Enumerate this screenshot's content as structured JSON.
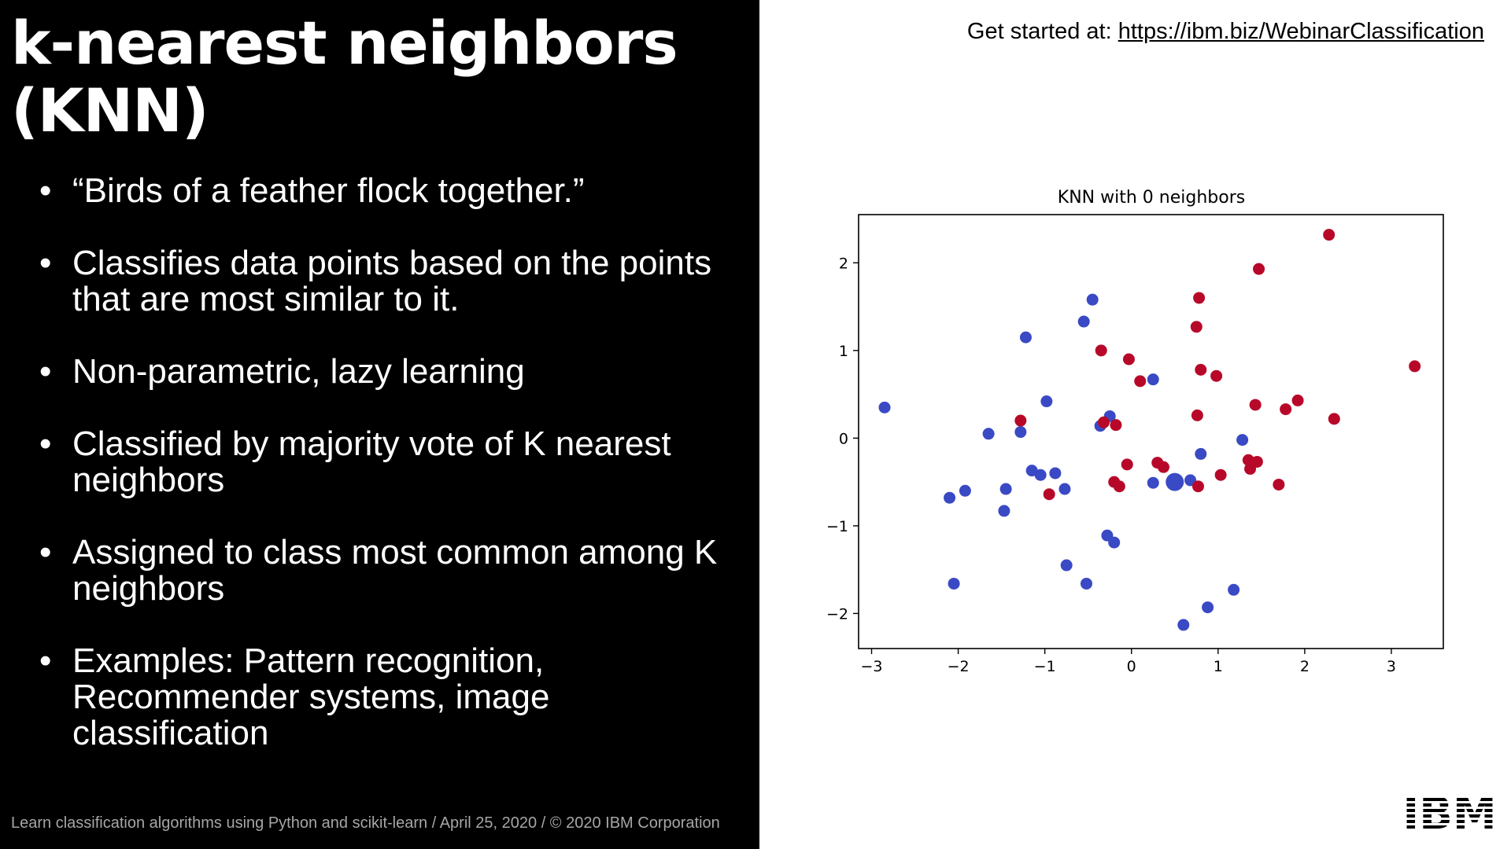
{
  "slide": {
    "title_line1": "k-nearest neighbors",
    "title_line2": "(KNN)",
    "bullets": [
      "“Birds of a feather flock together.”",
      "Classifies data points based on the points that are most similar to it.",
      "Non-parametric, lazy learning",
      "Classified by majority vote of K nearest neighbors",
      "Assigned to class most common among K neighbors",
      "Examples: Pattern recognition, Recommender systems, image classification"
    ],
    "bullet_glyph": "•",
    "footer": "Learn classification algorithms using Python and scikit-learn / April 25, 2020 / © 2020 IBM Corporation",
    "get_started_label": "Get started at: ",
    "get_started_link": "https://ibm.biz/WebinarClassification",
    "logo": "IBM",
    "colors": {
      "left_bg": "#000000",
      "right_bg": "#ffffff",
      "class_blue": "#3a49c4",
      "class_red": "#b8082a"
    }
  },
  "chart_data": {
    "type": "scatter",
    "title": "KNN with 0 neighbors",
    "xlabel": "",
    "ylabel": "",
    "xlim": [
      -3.15,
      3.6
    ],
    "ylim": [
      -2.4,
      2.55
    ],
    "xticks": [
      -3,
      -2,
      -1,
      0,
      1,
      2,
      3
    ],
    "yticks": [
      -2,
      -1,
      0,
      1,
      2
    ],
    "xtick_labels": [
      "−3",
      "−2",
      "−1",
      "0",
      "1",
      "2",
      "3"
    ],
    "ytick_labels": [
      "−2",
      "−1",
      "0",
      "1",
      "2"
    ],
    "grid": false,
    "series": [
      {
        "color": "#3a49c4",
        "points": [
          [
            -2.85,
            0.35
          ],
          [
            -2.1,
            -0.68
          ],
          [
            -2.05,
            -1.66
          ],
          [
            -1.92,
            -0.6
          ],
          [
            -1.65,
            0.05
          ],
          [
            -1.45,
            -0.58
          ],
          [
            -1.47,
            -0.83
          ],
          [
            -1.28,
            0.07
          ],
          [
            -1.22,
            1.15
          ],
          [
            -1.15,
            -0.37
          ],
          [
            -1.05,
            -0.42
          ],
          [
            -0.98,
            0.42
          ],
          [
            -0.88,
            -0.4
          ],
          [
            -0.77,
            -0.58
          ],
          [
            -0.75,
            -1.45
          ],
          [
            -0.55,
            1.33
          ],
          [
            -0.52,
            -1.66
          ],
          [
            -0.45,
            1.58
          ],
          [
            -0.36,
            0.14
          ],
          [
            -0.28,
            -1.11
          ],
          [
            -0.25,
            0.25
          ],
          [
            -0.2,
            -1.19
          ],
          [
            0.25,
            -0.51
          ],
          [
            0.25,
            0.67
          ],
          [
            0.6,
            -2.13
          ],
          [
            0.68,
            -0.48
          ],
          [
            0.8,
            -0.18
          ],
          [
            0.88,
            -1.93
          ],
          [
            1.18,
            -1.73
          ],
          [
            1.28,
            -0.02
          ]
        ]
      },
      {
        "color": "#b8082a",
        "points": [
          [
            -1.28,
            0.2
          ],
          [
            -0.95,
            -0.64
          ],
          [
            -0.35,
            1.0
          ],
          [
            -0.32,
            0.18
          ],
          [
            -0.2,
            -0.5
          ],
          [
            -0.18,
            0.15
          ],
          [
            -0.14,
            -0.55
          ],
          [
            -0.05,
            -0.3
          ],
          [
            -0.03,
            0.9
          ],
          [
            0.1,
            0.65
          ],
          [
            0.3,
            -0.28
          ],
          [
            0.37,
            -0.33
          ],
          [
            0.75,
            1.27
          ],
          [
            0.76,
            0.26
          ],
          [
            0.77,
            -0.55
          ],
          [
            0.78,
            1.6
          ],
          [
            0.8,
            0.78
          ],
          [
            0.98,
            0.71
          ],
          [
            1.03,
            -0.42
          ],
          [
            1.35,
            -0.25
          ],
          [
            1.37,
            -0.35
          ],
          [
            1.43,
            0.38
          ],
          [
            1.45,
            -0.27
          ],
          [
            1.47,
            1.93
          ],
          [
            1.7,
            -0.53
          ],
          [
            1.78,
            0.33
          ],
          [
            1.92,
            0.43
          ],
          [
            2.28,
            2.32
          ],
          [
            2.34,
            0.22
          ],
          [
            3.27,
            0.82
          ]
        ]
      }
    ],
    "highlight_point": {
      "x": 0.5,
      "y": -0.5,
      "color": "#3a49c4"
    }
  }
}
